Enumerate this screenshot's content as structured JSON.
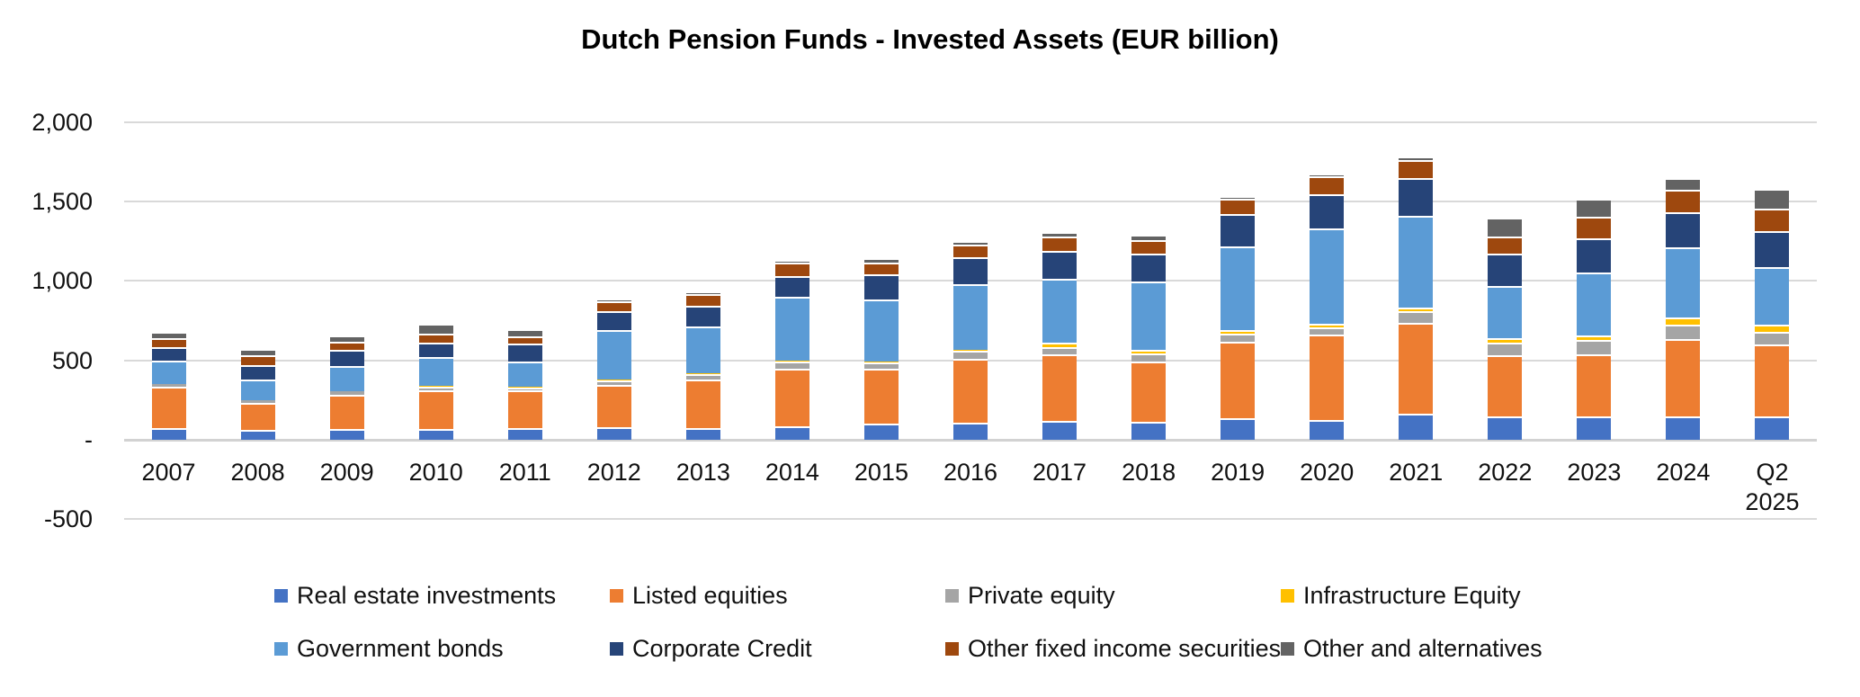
{
  "title": "Dutch Pension Funds - Invested Assets (EUR billion)",
  "y_axis": {
    "tick_labels": [
      "2,000",
      "1,500",
      "1,000",
      "500",
      "-",
      "-500"
    ],
    "tick_values": [
      2000,
      1500,
      1000,
      500,
      0,
      -500
    ]
  },
  "colors": {
    "gridline": "#D9D9D9",
    "axis_line": "#D2D2D2",
    "text": "#111111"
  },
  "chart_data": {
    "type": "bar",
    "stacked": true,
    "title": "Dutch Pension Funds - Invested Assets (EUR billion)",
    "xlabel": "",
    "ylabel": "",
    "ylim": [
      -500,
      2000
    ],
    "grid": true,
    "legend_position": "bottom",
    "categories": [
      "2007",
      "2008",
      "2009",
      "2010",
      "2011",
      "2012",
      "2013",
      "2014",
      "2015",
      "2016",
      "2017",
      "2018",
      "2019",
      "2020",
      "2021",
      "2022",
      "2023",
      "2024",
      "Q2\n2025"
    ],
    "series": [
      {
        "name": "Real estate investments",
        "color": "#4472C4",
        "values": [
          75,
          60,
          70,
          70,
          75,
          80,
          75,
          85,
          100,
          110,
          120,
          115,
          135,
          125,
          165,
          150,
          145,
          150,
          150
        ]
      },
      {
        "name": "Listed equities",
        "color": "#ED7D31",
        "values": [
          260,
          170,
          215,
          240,
          235,
          265,
          305,
          360,
          345,
          400,
          420,
          380,
          480,
          535,
          570,
          380,
          395,
          485,
          450
        ]
      },
      {
        "name": "Private equity",
        "color": "#A5A5A5",
        "values": [
          15,
          18,
          18,
          25,
          20,
          30,
          35,
          45,
          40,
          50,
          45,
          50,
          55,
          50,
          75,
          80,
          90,
          90,
          80
        ]
      },
      {
        "name": "Infrastructure Equity",
        "color": "#FFC000",
        "values": [
          3,
          2,
          2,
          4,
          4,
          5,
          5,
          8,
          10,
          5,
          25,
          20,
          20,
          20,
          25,
          30,
          25,
          45,
          45
        ]
      },
      {
        "name": "Government bonds",
        "color": "#5B9BD5",
        "values": [
          145,
          130,
          160,
          180,
          160,
          310,
          295,
          405,
          390,
          415,
          405,
          430,
          525,
          600,
          575,
          330,
          400,
          440,
          365
        ]
      },
      {
        "name": "Corporate Credit",
        "color": "#264478",
        "values": [
          85,
          90,
          100,
          95,
          110,
          120,
          130,
          130,
          155,
          170,
          175,
          180,
          205,
          215,
          240,
          200,
          215,
          225,
          225
        ]
      },
      {
        "name": "Other fixed income securities",
        "color": "#9E480E",
        "values": [
          55,
          65,
          55,
          55,
          50,
          65,
          70,
          85,
          75,
          80,
          90,
          85,
          100,
          115,
          110,
          110,
          135,
          140,
          140
        ]
      },
      {
        "name": "Other and alternatives",
        "color": "#636363",
        "values": [
          40,
          35,
          35,
          60,
          45,
          5,
          20,
          5,
          15,
          20,
          30,
          30,
          5,
          5,
          25,
          120,
          115,
          75,
          125
        ]
      }
    ],
    "legend_rows": [
      [
        "Real estate investments",
        "Listed equities",
        "Private equity",
        "Infrastructure Equity"
      ],
      [
        "Government bonds",
        "Corporate Credit",
        "Other fixed income securities",
        "Other and alternatives"
      ]
    ]
  }
}
